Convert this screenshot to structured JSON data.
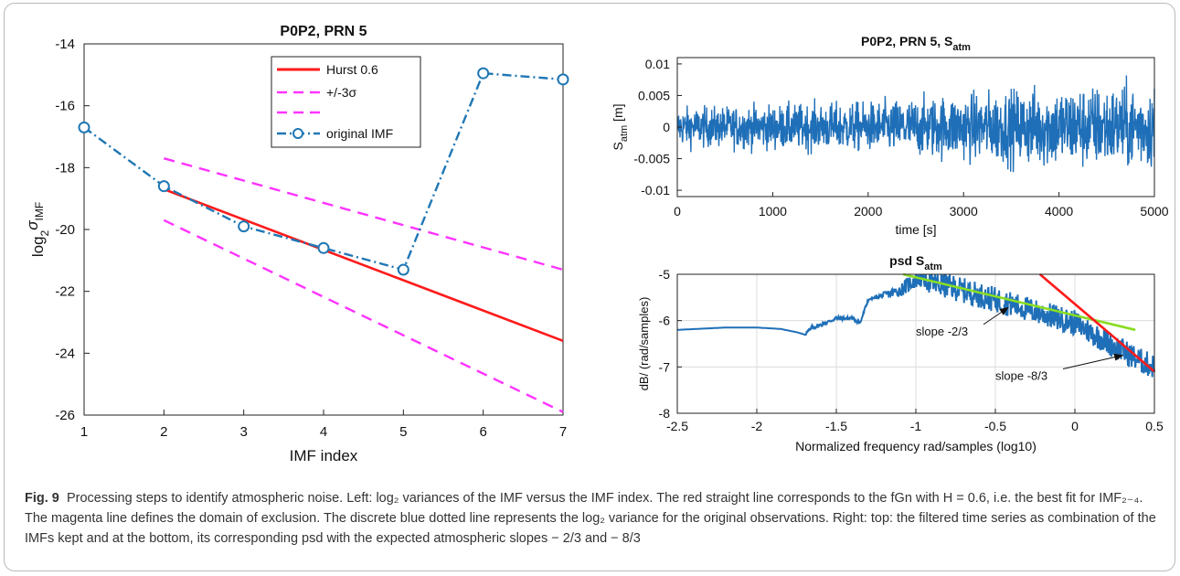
{
  "chart_data": [
    {
      "type": "line",
      "title": "P0P2, PRN 5",
      "xlabel": "IMF index",
      "ylabel_main": "log",
      "ylabel_sub": "2",
      "ylabel_sym": "σ",
      "ylabel_sub2": "IMF",
      "xlim": [
        1,
        7
      ],
      "ylim": [
        -26,
        -14
      ],
      "xticks": [
        "1",
        "2",
        "3",
        "4",
        "5",
        "6",
        "7"
      ],
      "yticks": [
        "-26",
        "-24",
        "-22",
        "-20",
        "-18",
        "-16",
        "-14"
      ],
      "grid": false,
      "legend_position": "top-right",
      "series": [
        {
          "name": "Hurst 0.6",
          "color": "#ff1a1a",
          "style": "solid",
          "x": [
            2,
            7
          ],
          "y": [
            -18.7,
            -23.6
          ]
        },
        {
          "name": "+/-3σ",
          "color": "#ff33ff",
          "style": "dashed",
          "x": [
            2,
            7
          ],
          "y": [
            -17.7,
            -21.3
          ]
        },
        {
          "name": "",
          "color": "#ff33ff",
          "style": "dashed",
          "x": [
            2,
            7
          ],
          "y": [
            -19.7,
            -25.9
          ]
        },
        {
          "name": "original IMF",
          "color": "#1f77b4",
          "style": "dashdot-marker",
          "x": [
            1,
            2,
            3,
            4,
            5,
            6,
            7
          ],
          "y": [
            -16.7,
            -18.6,
            -19.9,
            -20.6,
            -21.3,
            -14.95,
            -15.15
          ]
        }
      ]
    },
    {
      "type": "line",
      "title_main": "P0P2, PRN 5, S",
      "title_sub": "atm",
      "xlabel": "time [s]",
      "ylabel_main": "S",
      "ylabel_sub": "atm",
      "ylabel_unit": " [m]",
      "xlim": [
        0,
        5000
      ],
      "ylim": [
        -0.011,
        0.011
      ],
      "xticks": [
        "0",
        "1000",
        "2000",
        "3000",
        "4000",
        "5000"
      ],
      "yticks": [
        "0.01",
        "0.005",
        "0",
        "-0.005",
        "-0.01"
      ],
      "ytick_values": [
        0.01,
        0.005,
        0,
        -0.005,
        -0.01
      ],
      "grid": false,
      "series_color": "#1f6fb8",
      "amplitude_envelope": {
        "x": [
          0,
          1000,
          2000,
          3000,
          4000,
          5000
        ],
        "amp": [
          0.0035,
          0.004,
          0.0045,
          0.006,
          0.0075,
          0.0075
        ]
      }
    },
    {
      "type": "line",
      "title_main": "psd S",
      "title_sub": "atm",
      "xlabel": "Normalized frequency rad/samples (log10)",
      "ylabel": "dB/ (rad/samples)",
      "xlim": [
        -2.5,
        0.5
      ],
      "ylim": [
        -8,
        -5
      ],
      "xticks": [
        "-2.5",
        "-2",
        "-1.5",
        "-1",
        "-0.5",
        "0",
        "0.5"
      ],
      "xtick_values": [
        -2.5,
        -2,
        -1.5,
        -1,
        -0.5,
        0,
        0.5
      ],
      "yticks": [
        "-5",
        "-6",
        "-7",
        "-8"
      ],
      "ytick_values": [
        -5,
        -6,
        -7,
        -8
      ],
      "grid": true,
      "psd_curve": {
        "color": "#1f6fb8",
        "x": [
          -2.5,
          -2.2,
          -2.0,
          -1.85,
          -1.75,
          -1.7,
          -1.65,
          -1.6,
          -1.5,
          -1.4,
          -1.35,
          -1.3,
          -1.2,
          -1.1,
          -1.0,
          -0.95,
          -0.9,
          -0.8,
          -0.7,
          -0.6,
          -0.5,
          -0.4,
          -0.3,
          -0.2,
          -0.1,
          0.0,
          0.1,
          0.2,
          0.3,
          0.4,
          0.5
        ],
        "y": [
          -6.2,
          -6.15,
          -6.15,
          -6.18,
          -6.25,
          -6.3,
          -6.15,
          -6.1,
          -5.95,
          -5.95,
          -6.05,
          -5.55,
          -5.45,
          -5.35,
          -5.1,
          -5.05,
          -5.2,
          -5.25,
          -5.35,
          -5.45,
          -5.55,
          -5.65,
          -5.75,
          -5.85,
          -5.95,
          -6.05,
          -6.25,
          -6.45,
          -6.65,
          -6.85,
          -7.0
        ]
      },
      "fit_lines": [
        {
          "color": "#88dd22",
          "x": [
            -1.08,
            0.38
          ],
          "y": [
            -5.0,
            -6.2
          ]
        },
        {
          "color": "#ff1a1a",
          "x": [
            -0.22,
            0.5
          ],
          "y": [
            -5.0,
            -7.1
          ]
        }
      ],
      "annotations": [
        {
          "text": "slope -2/3",
          "x": -1.0,
          "y": -6.32,
          "arrow_to": [
            -0.42,
            -5.72
          ]
        },
        {
          "text": "slope -8/3",
          "x": -0.5,
          "y": -7.28,
          "arrow_to": [
            0.3,
            -6.75
          ]
        }
      ]
    }
  ],
  "caption": {
    "label": "Fig. 9",
    "text": "Processing steps to identify atmospheric noise. Left: log₂ variances of the IMF versus the IMF index. The red straight line corresponds to the fGn with H = 0.6, i.e. the best fit for IMF₂₋₄. The magenta line defines the domain of exclusion. The discrete blue dotted line represents the log₂ variance for the original observations. Right: top: the filtered time series as combination of the IMFs kept and at the bottom, its corresponding psd with the expected atmospheric slopes − 2/3 and − 8/3"
  }
}
